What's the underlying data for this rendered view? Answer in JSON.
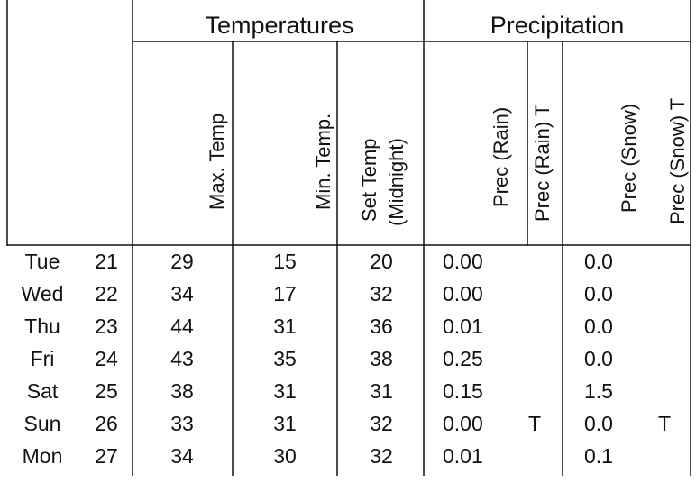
{
  "header": {
    "groups": [
      "Temperatures",
      "Precipitation"
    ],
    "columns": [
      {
        "lines": [
          "Max. Temp"
        ]
      },
      {
        "lines": [
          "Min. Temp."
        ]
      },
      {
        "lines": [
          "Set Temp",
          "(Midnight)"
        ]
      },
      {
        "lines": [
          "Prec (Rain)"
        ]
      },
      {
        "lines": [
          "Prec (Rain) T"
        ]
      },
      {
        "lines": [
          "Prec (Snow)"
        ]
      },
      {
        "lines": [
          "Prec (Snow) T"
        ]
      }
    ]
  },
  "table": {
    "rows": [
      [
        "Tue",
        21,
        29,
        15,
        20,
        "0.00",
        null,
        "0.0",
        null
      ],
      [
        "Wed",
        22,
        34,
        17,
        32,
        "0.00",
        null,
        "0.0",
        null
      ],
      [
        "Thu",
        23,
        44,
        31,
        36,
        "0.01",
        null,
        "0.0",
        null
      ],
      [
        "Fri",
        24,
        43,
        35,
        38,
        "0.25",
        null,
        "0.0",
        null
      ],
      [
        "Sat",
        25,
        38,
        31,
        31,
        "0.15",
        null,
        "1.5",
        null
      ],
      [
        "Sun",
        26,
        33,
        31,
        32,
        "0.00",
        "T",
        "0.0",
        "T"
      ],
      [
        "Mon",
        27,
        34,
        30,
        32,
        "0.01",
        null,
        "0.1",
        null
      ]
    ]
  }
}
